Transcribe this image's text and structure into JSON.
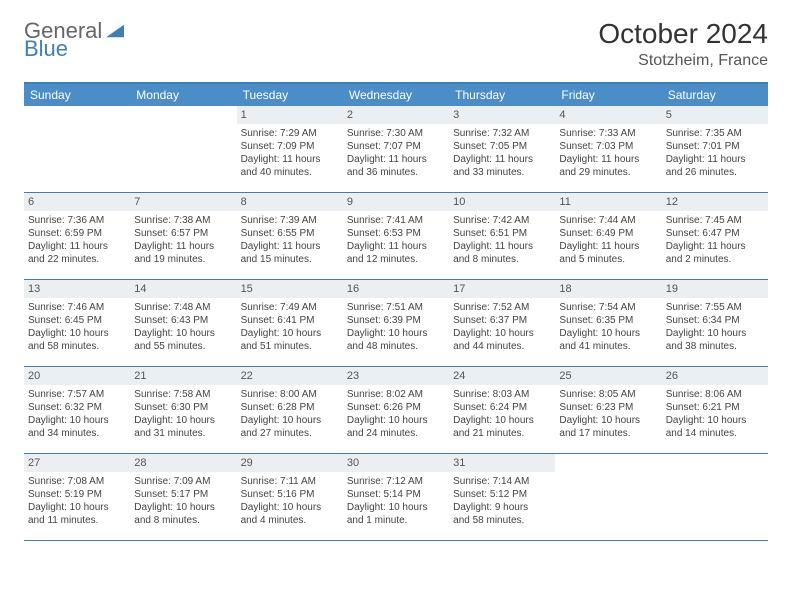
{
  "brand": {
    "part1": "General",
    "part2": "Blue"
  },
  "title": "October 2024",
  "location": "Stotzheim, France",
  "colors": {
    "header_bg": "#4a8dc7",
    "border": "#3e7fb5",
    "daynum_bg": "#eceff1",
    "text": "#444444"
  },
  "dow": [
    "Sunday",
    "Monday",
    "Tuesday",
    "Wednesday",
    "Thursday",
    "Friday",
    "Saturday"
  ],
  "weeks": [
    [
      {
        "n": "",
        "sr": "",
        "ss": "",
        "d1": "",
        "d2": ""
      },
      {
        "n": "",
        "sr": "",
        "ss": "",
        "d1": "",
        "d2": ""
      },
      {
        "n": "1",
        "sr": "Sunrise: 7:29 AM",
        "ss": "Sunset: 7:09 PM",
        "d1": "Daylight: 11 hours",
        "d2": "and 40 minutes."
      },
      {
        "n": "2",
        "sr": "Sunrise: 7:30 AM",
        "ss": "Sunset: 7:07 PM",
        "d1": "Daylight: 11 hours",
        "d2": "and 36 minutes."
      },
      {
        "n": "3",
        "sr": "Sunrise: 7:32 AM",
        "ss": "Sunset: 7:05 PM",
        "d1": "Daylight: 11 hours",
        "d2": "and 33 minutes."
      },
      {
        "n": "4",
        "sr": "Sunrise: 7:33 AM",
        "ss": "Sunset: 7:03 PM",
        "d1": "Daylight: 11 hours",
        "d2": "and 29 minutes."
      },
      {
        "n": "5",
        "sr": "Sunrise: 7:35 AM",
        "ss": "Sunset: 7:01 PM",
        "d1": "Daylight: 11 hours",
        "d2": "and 26 minutes."
      }
    ],
    [
      {
        "n": "6",
        "sr": "Sunrise: 7:36 AM",
        "ss": "Sunset: 6:59 PM",
        "d1": "Daylight: 11 hours",
        "d2": "and 22 minutes."
      },
      {
        "n": "7",
        "sr": "Sunrise: 7:38 AM",
        "ss": "Sunset: 6:57 PM",
        "d1": "Daylight: 11 hours",
        "d2": "and 19 minutes."
      },
      {
        "n": "8",
        "sr": "Sunrise: 7:39 AM",
        "ss": "Sunset: 6:55 PM",
        "d1": "Daylight: 11 hours",
        "d2": "and 15 minutes."
      },
      {
        "n": "9",
        "sr": "Sunrise: 7:41 AM",
        "ss": "Sunset: 6:53 PM",
        "d1": "Daylight: 11 hours",
        "d2": "and 12 minutes."
      },
      {
        "n": "10",
        "sr": "Sunrise: 7:42 AM",
        "ss": "Sunset: 6:51 PM",
        "d1": "Daylight: 11 hours",
        "d2": "and 8 minutes."
      },
      {
        "n": "11",
        "sr": "Sunrise: 7:44 AM",
        "ss": "Sunset: 6:49 PM",
        "d1": "Daylight: 11 hours",
        "d2": "and 5 minutes."
      },
      {
        "n": "12",
        "sr": "Sunrise: 7:45 AM",
        "ss": "Sunset: 6:47 PM",
        "d1": "Daylight: 11 hours",
        "d2": "and 2 minutes."
      }
    ],
    [
      {
        "n": "13",
        "sr": "Sunrise: 7:46 AM",
        "ss": "Sunset: 6:45 PM",
        "d1": "Daylight: 10 hours",
        "d2": "and 58 minutes."
      },
      {
        "n": "14",
        "sr": "Sunrise: 7:48 AM",
        "ss": "Sunset: 6:43 PM",
        "d1": "Daylight: 10 hours",
        "d2": "and 55 minutes."
      },
      {
        "n": "15",
        "sr": "Sunrise: 7:49 AM",
        "ss": "Sunset: 6:41 PM",
        "d1": "Daylight: 10 hours",
        "d2": "and 51 minutes."
      },
      {
        "n": "16",
        "sr": "Sunrise: 7:51 AM",
        "ss": "Sunset: 6:39 PM",
        "d1": "Daylight: 10 hours",
        "d2": "and 48 minutes."
      },
      {
        "n": "17",
        "sr": "Sunrise: 7:52 AM",
        "ss": "Sunset: 6:37 PM",
        "d1": "Daylight: 10 hours",
        "d2": "and 44 minutes."
      },
      {
        "n": "18",
        "sr": "Sunrise: 7:54 AM",
        "ss": "Sunset: 6:35 PM",
        "d1": "Daylight: 10 hours",
        "d2": "and 41 minutes."
      },
      {
        "n": "19",
        "sr": "Sunrise: 7:55 AM",
        "ss": "Sunset: 6:34 PM",
        "d1": "Daylight: 10 hours",
        "d2": "and 38 minutes."
      }
    ],
    [
      {
        "n": "20",
        "sr": "Sunrise: 7:57 AM",
        "ss": "Sunset: 6:32 PM",
        "d1": "Daylight: 10 hours",
        "d2": "and 34 minutes."
      },
      {
        "n": "21",
        "sr": "Sunrise: 7:58 AM",
        "ss": "Sunset: 6:30 PM",
        "d1": "Daylight: 10 hours",
        "d2": "and 31 minutes."
      },
      {
        "n": "22",
        "sr": "Sunrise: 8:00 AM",
        "ss": "Sunset: 6:28 PM",
        "d1": "Daylight: 10 hours",
        "d2": "and 27 minutes."
      },
      {
        "n": "23",
        "sr": "Sunrise: 8:02 AM",
        "ss": "Sunset: 6:26 PM",
        "d1": "Daylight: 10 hours",
        "d2": "and 24 minutes."
      },
      {
        "n": "24",
        "sr": "Sunrise: 8:03 AM",
        "ss": "Sunset: 6:24 PM",
        "d1": "Daylight: 10 hours",
        "d2": "and 21 minutes."
      },
      {
        "n": "25",
        "sr": "Sunrise: 8:05 AM",
        "ss": "Sunset: 6:23 PM",
        "d1": "Daylight: 10 hours",
        "d2": "and 17 minutes."
      },
      {
        "n": "26",
        "sr": "Sunrise: 8:06 AM",
        "ss": "Sunset: 6:21 PM",
        "d1": "Daylight: 10 hours",
        "d2": "and 14 minutes."
      }
    ],
    [
      {
        "n": "27",
        "sr": "Sunrise: 7:08 AM",
        "ss": "Sunset: 5:19 PM",
        "d1": "Daylight: 10 hours",
        "d2": "and 11 minutes."
      },
      {
        "n": "28",
        "sr": "Sunrise: 7:09 AM",
        "ss": "Sunset: 5:17 PM",
        "d1": "Daylight: 10 hours",
        "d2": "and 8 minutes."
      },
      {
        "n": "29",
        "sr": "Sunrise: 7:11 AM",
        "ss": "Sunset: 5:16 PM",
        "d1": "Daylight: 10 hours",
        "d2": "and 4 minutes."
      },
      {
        "n": "30",
        "sr": "Sunrise: 7:12 AM",
        "ss": "Sunset: 5:14 PM",
        "d1": "Daylight: 10 hours",
        "d2": "and 1 minute."
      },
      {
        "n": "31",
        "sr": "Sunrise: 7:14 AM",
        "ss": "Sunset: 5:12 PM",
        "d1": "Daylight: 9 hours",
        "d2": "and 58 minutes."
      },
      {
        "n": "",
        "sr": "",
        "ss": "",
        "d1": "",
        "d2": ""
      },
      {
        "n": "",
        "sr": "",
        "ss": "",
        "d1": "",
        "d2": ""
      }
    ]
  ]
}
